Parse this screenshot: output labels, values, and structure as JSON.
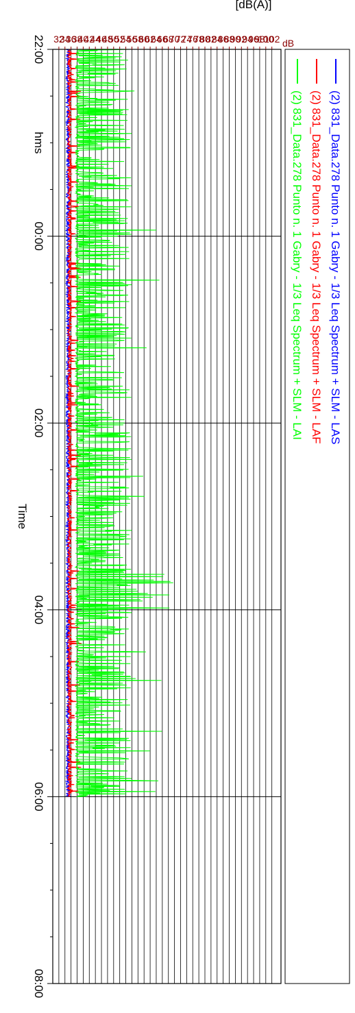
{
  "chart_data": {
    "type": "line",
    "title": "",
    "xlabel": "Time",
    "x_unit_label": "hms",
    "ylabel": "[dB(A)]",
    "y_unit_label": "dB",
    "x_ticks": [
      "22:00",
      "00:00",
      "02:00",
      "04:00",
      "06:00",
      "08:00"
    ],
    "x_range_hours": [
      0,
      10
    ],
    "data_range_hours": [
      0,
      8
    ],
    "ylim": [
      30,
      105
    ],
    "y_ticks": [
      32,
      34,
      36,
      38,
      40,
      42,
      44,
      46,
      48,
      50,
      52,
      54,
      56,
      58,
      60,
      62,
      64,
      66,
      68,
      70,
      72,
      74,
      76,
      78,
      80,
      82,
      84,
      86,
      88,
      90,
      92,
      94,
      96,
      98,
      100,
      102
    ],
    "grid": true,
    "legend_position": "right",
    "series": [
      {
        "name": "(2) 831_Data.278 Punto n. 1 Gabry - 1/3 Leq Spectrum + SLM - LAS",
        "color": "#0000ff",
        "baseline_db": 35,
        "peak_db_approx": 50
      },
      {
        "name": "(2) 831_Data.278 Punto n. 1 Gabry - 1/3 Leq Spectrum + SLM - LAF",
        "color": "#ff0000",
        "baseline_db": 35.5,
        "peak_db_approx": 52
      },
      {
        "name": "(2) 831_Data.278 Punto n. 1 Gabry - 1/3 Leq Spectrum + SLM - LAI",
        "color": "#00ff00",
        "baseline_db": 38,
        "peak_db_approx": 70
      }
    ]
  }
}
